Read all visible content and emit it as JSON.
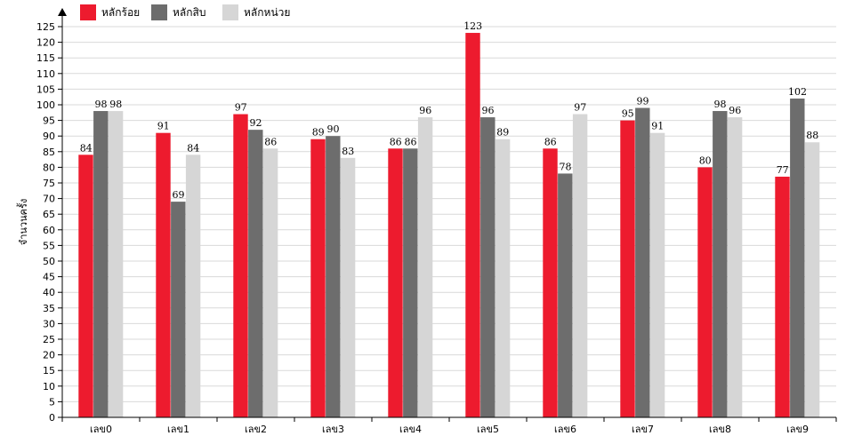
{
  "chart_data": {
    "type": "bar",
    "title": "",
    "xlabel": "",
    "ylabel": "จำนวนครั้ง",
    "ylim": [
      0,
      125
    ],
    "ytick_step": 5,
    "grid": true,
    "legend_position": "top-left",
    "categories": [
      "เลข0",
      "เลข1",
      "เลข2",
      "เลข3",
      "เลข4",
      "เลข5",
      "เลข6",
      "เลข7",
      "เลข8",
      "เลข9"
    ],
    "series": [
      {
        "name": "หลักร้อย",
        "color": "#ed1b2e",
        "values": [
          84,
          91,
          97,
          89,
          86,
          123,
          86,
          95,
          80,
          77
        ]
      },
      {
        "name": "หลักสิบ",
        "color": "#6d6d6d",
        "values": [
          98,
          69,
          92,
          90,
          86,
          96,
          78,
          99,
          98,
          102
        ]
      },
      {
        "name": "หลักหน่วย",
        "color": "#d6d6d6",
        "values": [
          98,
          84,
          86,
          83,
          96,
          89,
          97,
          91,
          96,
          88
        ]
      }
    ]
  }
}
